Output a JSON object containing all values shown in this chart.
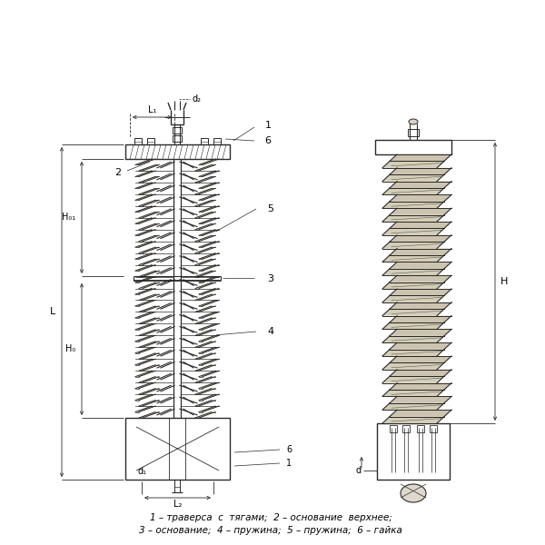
{
  "bg_color": "#ffffff",
  "line_color": "#2a2a2a",
  "label_color": "#000000",
  "caption_line1": "1 – траверса  с  тягами;  2 – основание  верхнее;",
  "caption_line2": "3 – основание;  4 – пружина;  5 – пружина;  6 – гайка",
  "dim_L1": "L₁",
  "dim_L2": "L₂",
  "dim_L": "L",
  "dim_H01": "H₀₁",
  "dim_H0": "H₀",
  "dim_H": "H",
  "dim_d1": "d₁",
  "dim_d2": "d₂",
  "dim_d": "d"
}
